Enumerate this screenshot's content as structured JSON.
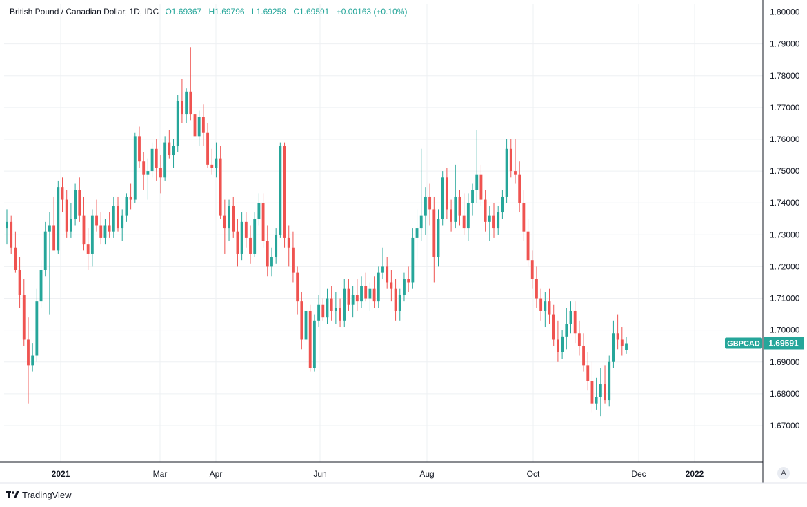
{
  "header": {
    "title": "British Pound / Canadian Dollar, 1D, IDC",
    "open": "O1.69367",
    "high": "H1.69796",
    "low": "L1.69258",
    "close": "C1.69591",
    "change": "+0.00163 (+0.10%)"
  },
  "price_label": {
    "symbol": "GBPCAD",
    "value": "1.69591"
  },
  "footer": {
    "brand": "TradingView"
  },
  "auto_button": "A",
  "colors": {
    "up": "#26a69a",
    "down": "#ef5350",
    "grid": "#eef0f3",
    "axis": "#131722"
  },
  "chart_data": {
    "type": "candlestick",
    "x_ticks": [
      "2021",
      "Mar",
      "Apr",
      "Jun",
      "Aug",
      "Oct",
      "Dec",
      "2022"
    ],
    "y_ticks": [
      "1.67000",
      "1.68000",
      "1.69000",
      "1.70000",
      "1.71000",
      "1.72000",
      "1.73000",
      "1.74000",
      "1.75000",
      "1.76000",
      "1.77000",
      "1.78000",
      "1.79000",
      "1.80000"
    ],
    "ylim": [
      1.6585,
      1.8025
    ],
    "grid": true,
    "candles": [
      [
        1.732,
        1.738,
        1.727,
        1.734
      ],
      [
        1.734,
        1.736,
        1.724,
        1.726
      ],
      [
        1.726,
        1.731,
        1.718,
        1.719
      ],
      [
        1.719,
        1.723,
        1.707,
        1.711
      ],
      [
        1.711,
        1.716,
        1.695,
        1.697
      ],
      [
        1.697,
        1.704,
        1.677,
        1.689
      ],
      [
        1.689,
        1.696,
        1.687,
        1.692
      ],
      [
        1.692,
        1.713,
        1.69,
        1.709
      ],
      [
        1.709,
        1.722,
        1.707,
        1.719
      ],
      [
        1.719,
        1.734,
        1.717,
        1.731
      ],
      [
        1.731,
        1.737,
        1.705,
        1.733
      ],
      [
        1.733,
        1.742,
        1.725,
        1.725
      ],
      [
        1.725,
        1.747,
        1.724,
        1.745
      ],
      [
        1.745,
        1.748,
        1.737,
        1.741
      ],
      [
        1.741,
        1.744,
        1.729,
        1.731
      ],
      [
        1.731,
        1.74,
        1.729,
        1.735
      ],
      [
        1.735,
        1.746,
        1.733,
        1.744
      ],
      [
        1.744,
        1.748,
        1.734,
        1.736
      ],
      [
        1.736,
        1.742,
        1.725,
        1.727
      ],
      [
        1.727,
        1.732,
        1.719,
        1.724
      ],
      [
        1.724,
        1.738,
        1.72,
        1.736
      ],
      [
        1.736,
        1.741,
        1.731,
        1.733
      ],
      [
        1.733,
        1.737,
        1.727,
        1.729
      ],
      [
        1.729,
        1.735,
        1.727,
        1.733
      ],
      [
        1.733,
        1.737,
        1.729,
        1.731
      ],
      [
        1.731,
        1.742,
        1.729,
        1.739
      ],
      [
        1.739,
        1.742,
        1.731,
        1.732
      ],
      [
        1.732,
        1.738,
        1.728,
        1.736
      ],
      [
        1.736,
        1.743,
        1.734,
        1.742
      ],
      [
        1.742,
        1.746,
        1.738,
        1.741
      ],
      [
        1.741,
        1.762,
        1.74,
        1.761
      ],
      [
        1.761,
        1.764,
        1.751,
        1.753
      ],
      [
        1.753,
        1.756,
        1.744,
        1.749
      ],
      [
        1.749,
        1.754,
        1.741,
        1.75
      ],
      [
        1.75,
        1.759,
        1.748,
        1.757
      ],
      [
        1.757,
        1.76,
        1.747,
        1.751
      ],
      [
        1.751,
        1.755,
        1.743,
        1.748
      ],
      [
        1.748,
        1.761,
        1.747,
        1.759
      ],
      [
        1.759,
        1.763,
        1.754,
        1.755
      ],
      [
        1.755,
        1.76,
        1.751,
        1.758
      ],
      [
        1.758,
        1.774,
        1.756,
        1.772
      ],
      [
        1.772,
        1.779,
        1.765,
        1.768
      ],
      [
        1.768,
        1.776,
        1.765,
        1.775
      ],
      [
        1.775,
        1.789,
        1.766,
        1.768
      ],
      [
        1.768,
        1.778,
        1.757,
        1.761
      ],
      [
        1.761,
        1.769,
        1.758,
        1.767
      ],
      [
        1.767,
        1.771,
        1.758,
        1.762
      ],
      [
        1.762,
        1.765,
        1.751,
        1.752
      ],
      [
        1.752,
        1.757,
        1.749,
        1.751
      ],
      [
        1.751,
        1.759,
        1.748,
        1.754
      ],
      [
        1.754,
        1.758,
        1.735,
        1.736
      ],
      [
        1.736,
        1.741,
        1.724,
        1.732
      ],
      [
        1.732,
        1.741,
        1.728,
        1.739
      ],
      [
        1.739,
        1.742,
        1.729,
        1.731
      ],
      [
        1.731,
        1.735,
        1.72,
        1.724
      ],
      [
        1.724,
        1.737,
        1.722,
        1.734
      ],
      [
        1.734,
        1.737,
        1.726,
        1.729
      ],
      [
        1.729,
        1.733,
        1.721,
        1.724
      ],
      [
        1.724,
        1.737,
        1.723,
        1.735
      ],
      [
        1.735,
        1.743,
        1.733,
        1.74
      ],
      [
        1.74,
        1.743,
        1.726,
        1.728
      ],
      [
        1.728,
        1.733,
        1.717,
        1.72
      ],
      [
        1.72,
        1.726,
        1.717,
        1.723
      ],
      [
        1.723,
        1.732,
        1.721,
        1.73
      ],
      [
        1.73,
        1.759,
        1.729,
        1.758
      ],
      [
        1.758,
        1.759,
        1.726,
        1.729
      ],
      [
        1.729,
        1.733,
        1.72,
        1.726
      ],
      [
        1.726,
        1.731,
        1.715,
        1.718
      ],
      [
        1.718,
        1.72,
        1.705,
        1.709
      ],
      [
        1.709,
        1.712,
        1.694,
        1.697
      ],
      [
        1.697,
        1.708,
        1.695,
        1.706
      ],
      [
        1.706,
        1.708,
        1.687,
        1.688
      ],
      [
        1.688,
        1.705,
        1.687,
        1.703
      ],
      [
        1.703,
        1.711,
        1.701,
        1.708
      ],
      [
        1.708,
        1.71,
        1.703,
        1.704
      ],
      [
        1.704,
        1.713,
        1.702,
        1.71
      ],
      [
        1.71,
        1.714,
        1.703,
        1.706
      ],
      [
        1.706,
        1.712,
        1.702,
        1.707
      ],
      [
        1.707,
        1.71,
        1.701,
        1.703
      ],
      [
        1.703,
        1.716,
        1.701,
        1.713
      ],
      [
        1.713,
        1.716,
        1.706,
        1.708
      ],
      [
        1.708,
        1.714,
        1.704,
        1.711
      ],
      [
        1.711,
        1.716,
        1.706,
        1.709
      ],
      [
        1.709,
        1.717,
        1.707,
        1.714
      ],
      [
        1.714,
        1.718,
        1.709,
        1.71
      ],
      [
        1.71,
        1.715,
        1.706,
        1.713
      ],
      [
        1.713,
        1.717,
        1.707,
        1.709
      ],
      [
        1.709,
        1.72,
        1.707,
        1.718
      ],
      [
        1.718,
        1.726,
        1.716,
        1.72
      ],
      [
        1.72,
        1.723,
        1.713,
        1.715
      ],
      [
        1.715,
        1.719,
        1.709,
        1.713
      ],
      [
        1.713,
        1.716,
        1.703,
        1.706
      ],
      [
        1.706,
        1.713,
        1.703,
        1.711
      ],
      [
        1.711,
        1.718,
        1.709,
        1.716
      ],
      [
        1.716,
        1.72,
        1.712,
        1.715
      ],
      [
        1.715,
        1.732,
        1.713,
        1.729
      ],
      [
        1.729,
        1.738,
        1.722,
        1.732
      ],
      [
        1.732,
        1.757,
        1.728,
        1.736
      ],
      [
        1.736,
        1.745,
        1.73,
        1.742
      ],
      [
        1.742,
        1.746,
        1.733,
        1.738
      ],
      [
        1.738,
        1.742,
        1.715,
        1.723
      ],
      [
        1.723,
        1.738,
        1.72,
        1.735
      ],
      [
        1.735,
        1.75,
        1.733,
        1.748
      ],
      [
        1.748,
        1.751,
        1.735,
        1.738
      ],
      [
        1.738,
        1.741,
        1.731,
        1.734
      ],
      [
        1.734,
        1.752,
        1.732,
        1.742
      ],
      [
        1.742,
        1.744,
        1.733,
        1.736
      ],
      [
        1.736,
        1.743,
        1.73,
        1.732
      ],
      [
        1.732,
        1.743,
        1.728,
        1.74
      ],
      [
        1.74,
        1.746,
        1.736,
        1.744
      ],
      [
        1.744,
        1.763,
        1.74,
        1.749
      ],
      [
        1.749,
        1.752,
        1.739,
        1.741
      ],
      [
        1.741,
        1.744,
        1.731,
        1.734
      ],
      [
        1.734,
        1.739,
        1.728,
        1.736
      ],
      [
        1.736,
        1.74,
        1.729,
        1.732
      ],
      [
        1.732,
        1.739,
        1.73,
        1.737
      ],
      [
        1.737,
        1.744,
        1.735,
        1.742
      ],
      [
        1.742,
        1.76,
        1.74,
        1.757
      ],
      [
        1.757,
        1.76,
        1.748,
        1.75
      ],
      [
        1.75,
        1.76,
        1.746,
        1.749
      ],
      [
        1.749,
        1.753,
        1.737,
        1.74
      ],
      [
        1.74,
        1.744,
        1.728,
        1.731
      ],
      [
        1.731,
        1.735,
        1.72,
        1.722
      ],
      [
        1.722,
        1.725,
        1.713,
        1.716
      ],
      [
        1.716,
        1.72,
        1.707,
        1.71
      ],
      [
        1.71,
        1.713,
        1.703,
        1.706
      ],
      [
        1.706,
        1.712,
        1.701,
        1.709
      ],
      [
        1.709,
        1.713,
        1.702,
        1.705
      ],
      [
        1.705,
        1.708,
        1.695,
        1.697
      ],
      [
        1.697,
        1.703,
        1.69,
        1.693
      ],
      [
        1.693,
        1.7,
        1.691,
        1.698
      ],
      [
        1.698,
        1.707,
        1.694,
        1.702
      ],
      [
        1.702,
        1.709,
        1.699,
        1.706
      ],
      [
        1.706,
        1.709,
        1.696,
        1.699
      ],
      [
        1.699,
        1.703,
        1.692,
        1.695
      ],
      [
        1.695,
        1.699,
        1.687,
        1.689
      ],
      [
        1.689,
        1.693,
        1.681,
        1.684
      ],
      [
        1.684,
        1.69,
        1.674,
        1.677
      ],
      [
        1.677,
        1.685,
        1.675,
        1.679
      ],
      [
        1.679,
        1.688,
        1.673,
        1.683
      ],
      [
        1.683,
        1.689,
        1.677,
        1.678
      ],
      [
        1.678,
        1.692,
        1.676,
        1.69
      ],
      [
        1.69,
        1.703,
        1.688,
        1.699
      ],
      [
        1.699,
        1.705,
        1.694,
        1.697
      ],
      [
        1.697,
        1.701,
        1.692,
        1.695
      ],
      [
        1.69367,
        1.69796,
        1.69258,
        1.69591
      ]
    ]
  }
}
